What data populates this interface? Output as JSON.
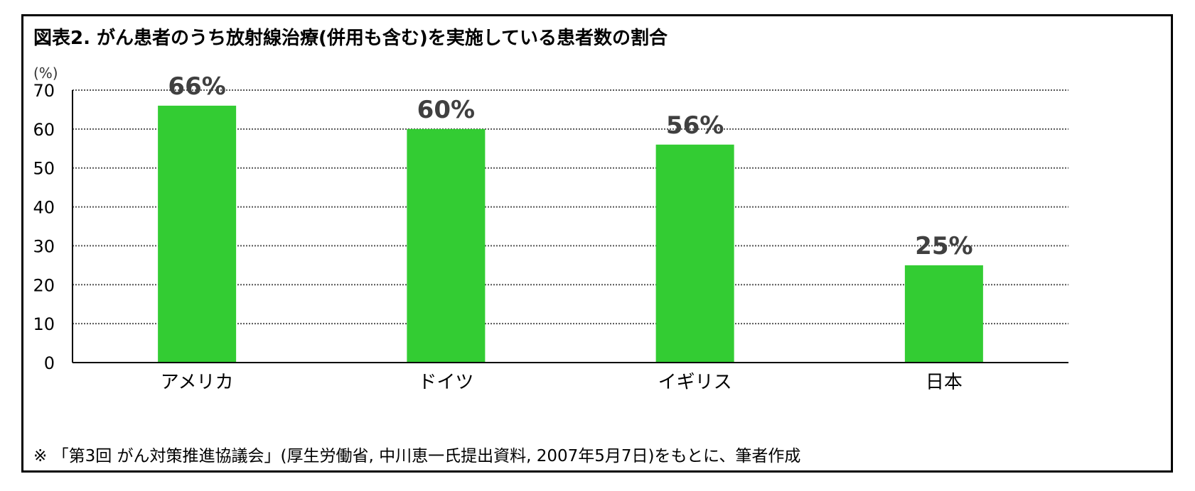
{
  "title": "図表2.  がん患者のうち放射線治療(併用も含む)を実施している患者数の割合",
  "note": "※  「第3回 がん対策推進協議会」(厚生労働省, 中川恵一氏提出資料, 2007年5月7日)をもとに、筆者作成",
  "colors": {
    "bar": "#33cc33",
    "label": "#404040",
    "axis": "#000000",
    "grid": "#555555"
  },
  "chart_data": {
    "type": "bar",
    "ylabel": "(%)",
    "categories": [
      "アメリカ",
      "ドイツ",
      "イギリス",
      "日本"
    ],
    "values": [
      66,
      60,
      56,
      25
    ],
    "data_labels": [
      "66%",
      "60%",
      "56%",
      "25%"
    ],
    "ylim": [
      0,
      70
    ],
    "yticks": [
      0,
      10,
      20,
      30,
      40,
      50,
      60,
      70
    ],
    "grid": true,
    "grid_style": "dotted",
    "legend": "none"
  }
}
